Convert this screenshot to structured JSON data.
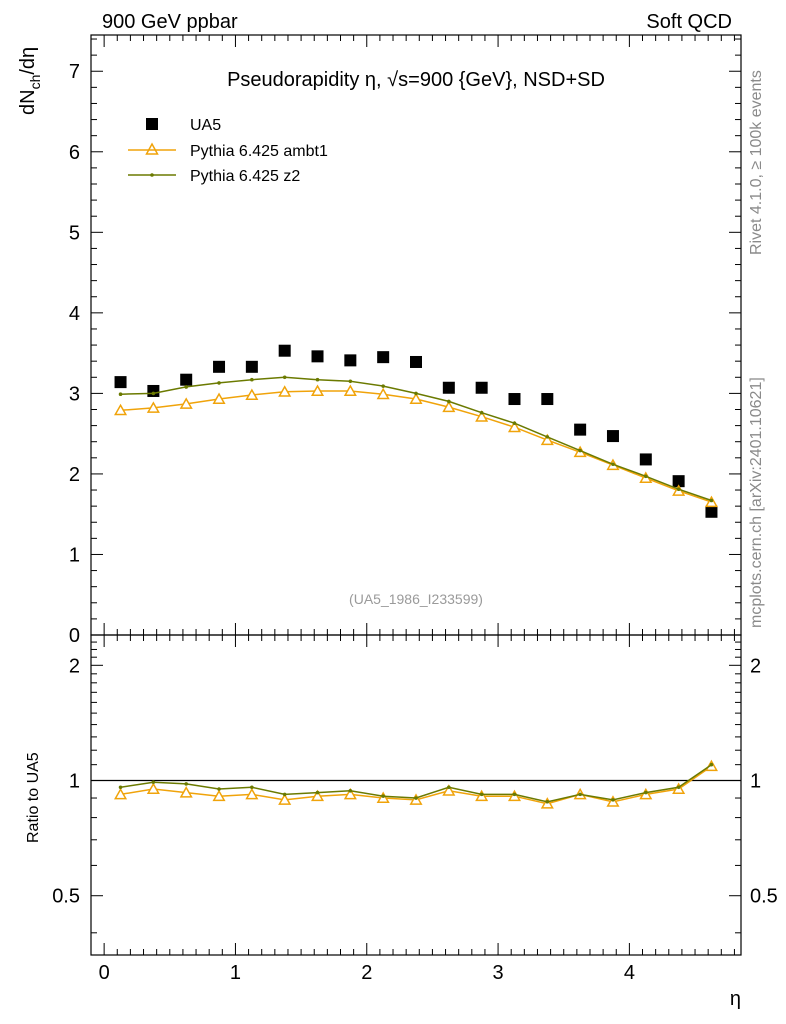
{
  "header": {
    "left": "900 GeV ppbar",
    "right": "Soft QCD"
  },
  "side_text": {
    "top": "Rivet 4.1.0, ≥ 100k events",
    "bottom": "mcplots.cern.ch [arXiv:2401.10621]"
  },
  "chart_data": {
    "type": "scatter",
    "title": "Pseudorapidity η, √s=900 {GeV}, NSD+SD",
    "dataset_label": "(UA5_1986_I233599)",
    "xlabel": "η",
    "ylabel": "dN_ch/dη",
    "ylabel_parts": {
      "main": "dN",
      "sub": "ch",
      "tail": "/dη"
    },
    "ratio_ylabel": "Ratio to UA5",
    "xlim": [
      -0.1,
      4.85
    ],
    "ylim": [
      0,
      7.45
    ],
    "ratio_ylim": [
      0.35,
      2.4
    ],
    "x_ticks": [
      0,
      1,
      2,
      3,
      4
    ],
    "y_ticks": [
      0,
      1,
      2,
      3,
      4,
      5,
      6,
      7
    ],
    "ratio_ticks": [
      0.5,
      1,
      2
    ],
    "ratio_tick_labels": [
      "0.5",
      "1",
      "2"
    ],
    "x": [
      0.125,
      0.375,
      0.625,
      0.875,
      1.125,
      1.375,
      1.625,
      1.875,
      2.125,
      2.375,
      2.625,
      2.875,
      3.125,
      3.375,
      3.625,
      3.875,
      4.125,
      4.375,
      4.625
    ],
    "series": [
      {
        "name": "UA5",
        "style": "data",
        "color": "#000000",
        "values": [
          3.14,
          3.03,
          3.17,
          3.33,
          3.33,
          3.53,
          3.46,
          3.41,
          3.45,
          3.39,
          3.07,
          3.07,
          2.93,
          2.93,
          2.55,
          2.47,
          2.18,
          1.91,
          1.53
        ]
      },
      {
        "name": "Pythia 6.425 ambt1",
        "style": "triangle",
        "color": "#f0a30a",
        "values": [
          2.79,
          2.82,
          2.87,
          2.93,
          2.98,
          3.02,
          3.03,
          3.03,
          2.99,
          2.93,
          2.83,
          2.71,
          2.58,
          2.42,
          2.27,
          2.11,
          1.95,
          1.79,
          1.65
        ],
        "ratio": [
          0.92,
          0.95,
          0.93,
          0.91,
          0.92,
          0.89,
          0.91,
          0.92,
          0.9,
          0.89,
          0.94,
          0.91,
          0.91,
          0.87,
          0.92,
          0.88,
          0.92,
          0.95,
          1.09
        ]
      },
      {
        "name": "Pythia 6.425 z2",
        "style": "dot",
        "color": "#6b7a00",
        "values": [
          2.99,
          3.0,
          3.08,
          3.13,
          3.17,
          3.2,
          3.17,
          3.15,
          3.09,
          3.0,
          2.9,
          2.76,
          2.63,
          2.46,
          2.29,
          2.12,
          1.97,
          1.81,
          1.67
        ],
        "ratio": [
          0.96,
          0.99,
          0.98,
          0.95,
          0.96,
          0.92,
          0.93,
          0.94,
          0.91,
          0.9,
          0.96,
          0.92,
          0.92,
          0.88,
          0.92,
          0.89,
          0.93,
          0.96,
          1.1
        ]
      }
    ]
  }
}
